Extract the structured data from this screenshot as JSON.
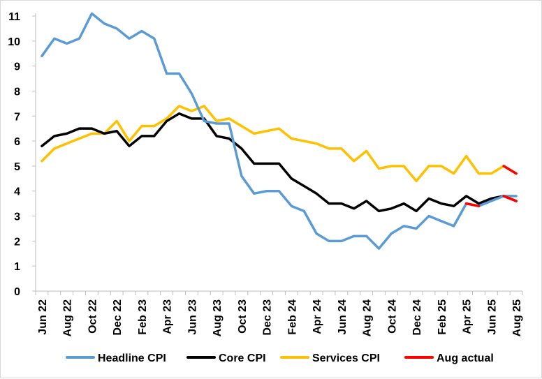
{
  "chart_data": {
    "type": "line",
    "title": "",
    "xlabel": "",
    "ylabel": "",
    "ylim": [
      0,
      11
    ],
    "yticks": [
      0,
      1,
      2,
      3,
      4,
      5,
      6,
      7,
      8,
      9,
      10,
      11
    ],
    "grid": false,
    "legend_position": "bottom",
    "x": [
      "Jun 22",
      "Jul 22",
      "Aug 22",
      "Sep 22",
      "Oct 22",
      "Nov 22",
      "Dec 22",
      "Jan 23",
      "Feb 23",
      "Mar 23",
      "Apr 23",
      "May 23",
      "Jun 23",
      "Jul 23",
      "Aug 23",
      "Sep 23",
      "Oct 23",
      "Nov 23",
      "Dec 23",
      "Jan 24",
      "Feb 24",
      "Mar 24",
      "Apr 24",
      "May 24",
      "Jun 24",
      "Jul 24",
      "Aug 24",
      "Sep 24",
      "Oct 24",
      "Nov 24",
      "Dec 24",
      "Jan 25",
      "Feb 25",
      "Mar 25",
      "Apr 25",
      "May 25",
      "Jun 25",
      "Jul 25",
      "Aug 25"
    ],
    "x_tick_labels": [
      "Jun 22",
      "",
      "Aug 22",
      "",
      "Oct 22",
      "",
      "Dec 22",
      "",
      "Feb 23",
      "",
      "Apr 23",
      "",
      "Jun 23",
      "",
      "Aug 23",
      "",
      "Oct 23",
      "",
      "Dec 23",
      "",
      "Feb 24",
      "",
      "Apr 24",
      "",
      "Jun 24",
      "",
      "Aug 24",
      "",
      "Oct 24",
      "",
      "Dec 24",
      "",
      "Feb 25",
      "",
      "Apr 25",
      "",
      "Jun 25",
      "",
      "Aug 25"
    ],
    "series": [
      {
        "name": "Headline CPI",
        "color": "#5b9bd5",
        "values": [
          9.4,
          10.1,
          9.9,
          10.1,
          11.1,
          10.7,
          10.5,
          10.1,
          10.4,
          10.1,
          8.7,
          8.7,
          7.9,
          6.8,
          6.7,
          6.7,
          4.6,
          3.9,
          4.0,
          4.0,
          3.4,
          3.2,
          2.3,
          2.0,
          2.0,
          2.2,
          2.2,
          1.7,
          2.3,
          2.6,
          2.5,
          3.0,
          2.8,
          2.6,
          3.5,
          3.4,
          3.6,
          3.8,
          3.8
        ]
      },
      {
        "name": "Core CPI",
        "color": "#000000",
        "values": [
          5.8,
          6.2,
          6.3,
          6.5,
          6.5,
          6.3,
          6.4,
          5.8,
          6.2,
          6.2,
          6.8,
          7.1,
          6.9,
          6.9,
          6.2,
          6.1,
          5.7,
          5.1,
          5.1,
          5.1,
          4.5,
          4.2,
          3.9,
          3.5,
          3.5,
          3.3,
          3.6,
          3.2,
          3.3,
          3.5,
          3.2,
          3.7,
          3.5,
          3.4,
          3.8,
          3.5,
          3.7,
          3.8,
          3.6
        ]
      },
      {
        "name": "Services CPI",
        "color": "#ffc000",
        "values": [
          5.2,
          5.7,
          5.9,
          6.1,
          6.3,
          6.3,
          6.8,
          6.0,
          6.6,
          6.6,
          6.9,
          7.4,
          7.2,
          7.4,
          6.8,
          6.9,
          6.6,
          6.3,
          6.4,
          6.5,
          6.1,
          6.0,
          5.9,
          5.7,
          5.7,
          5.2,
          5.6,
          4.9,
          5.0,
          5.0,
          4.4,
          5.0,
          5.0,
          4.7,
          5.4,
          4.7,
          4.7,
          5.0,
          4.7
        ]
      },
      {
        "name": "Aug actual",
        "color": "#ff0000",
        "segments": [
          {
            "x": [
              "Apr 25",
              "May 25"
            ],
            "values": [
              3.5,
              3.4
            ]
          },
          {
            "x": [
              "Jul 25",
              "Aug 25"
            ],
            "values": [
              3.8,
              3.6
            ]
          },
          {
            "x": [
              "Jul 25",
              "Aug 25"
            ],
            "values": [
              5.0,
              4.7
            ]
          }
        ]
      }
    ]
  },
  "legend": {
    "items": [
      {
        "label": "Headline CPI",
        "color": "#5b9bd5"
      },
      {
        "label": "Core CPI",
        "color": "#000000"
      },
      {
        "label": "Services CPI",
        "color": "#ffc000"
      },
      {
        "label": "Aug actual",
        "color": "#ff0000"
      }
    ]
  }
}
